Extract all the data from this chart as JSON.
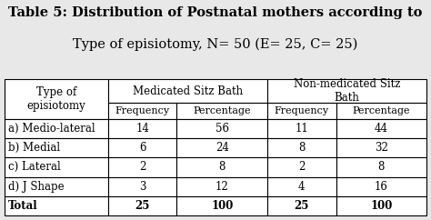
{
  "title_bold": "Table 5:",
  "title_line1_rest": " Distribution of Postnatal mothers according to",
  "title_line2": "Type of episiotomy, N= 50 (E= 25, C= 25)",
  "col_header_row1_med": "Medicated Sitz Bath",
  "col_header_row1_nonmed": "Non-medicated Sitz\nBath",
  "col_header_row2": [
    "Frequency",
    "Percentage",
    "Frequency",
    "Percentage"
  ],
  "col0_header": "Type of\nepisiotomy",
  "rows": [
    [
      "a) Medio-lateral",
      "14",
      "56",
      "11",
      "44"
    ],
    [
      "b) Medial",
      "6",
      "24",
      "8",
      "32"
    ],
    [
      "c) Lateral",
      "2",
      "8",
      "2",
      "8"
    ],
    [
      "d) J Shape",
      "3",
      "12",
      "4",
      "16"
    ],
    [
      "Total",
      "25",
      "100",
      "25",
      "100"
    ]
  ],
  "bg_color": "#e8e8e8",
  "table_bg": "#ffffff",
  "border_color": "#000000",
  "font_size": 8.5,
  "title_font_size": 10.5
}
